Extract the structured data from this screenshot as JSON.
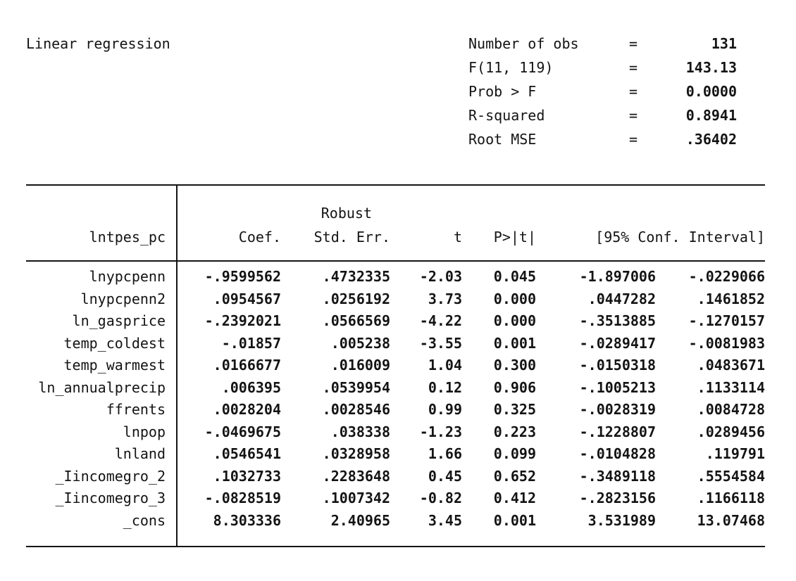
{
  "title": "Linear regression",
  "stats": {
    "rows": [
      {
        "label": "Number of obs",
        "eq": "=",
        "value": "131"
      },
      {
        "label": "F(11, 119)",
        "eq": "=",
        "value": "143.13"
      },
      {
        "label": "Prob > F",
        "eq": "=",
        "value": "0.0000"
      },
      {
        "label": "R-squared",
        "eq": "=",
        "value": "0.8941"
      },
      {
        "label": "Root MSE",
        "eq": "=",
        "value": ".36402"
      }
    ]
  },
  "table": {
    "depvar": "lntpes_pc",
    "robust_label": "Robust",
    "headers": {
      "coef": "Coef.",
      "stderr": "Std. Err.",
      "t": "t",
      "p": "P>|t|",
      "ci": "[95% Conf. Interval]"
    },
    "rows": [
      {
        "var": "lnypcpenn",
        "coef": "-.9599562",
        "se": ".4732335",
        "t": "-2.03",
        "p": "0.045",
        "ci_low": "-1.897006",
        "ci_high": "-.0229066"
      },
      {
        "var": "lnypcpenn2",
        "coef": ".0954567",
        "se": ".0256192",
        "t": "3.73",
        "p": "0.000",
        "ci_low": ".0447282",
        "ci_high": ".1461852"
      },
      {
        "var": "ln_gasprice",
        "coef": "-.2392021",
        "se": ".0566569",
        "t": "-4.22",
        "p": "0.000",
        "ci_low": "-.3513885",
        "ci_high": "-.1270157"
      },
      {
        "var": "temp_coldest",
        "coef": "-.01857",
        "se": ".005238",
        "t": "-3.55",
        "p": "0.001",
        "ci_low": "-.0289417",
        "ci_high": "-.0081983"
      },
      {
        "var": "temp_warmest",
        "coef": ".0166677",
        "se": ".016009",
        "t": "1.04",
        "p": "0.300",
        "ci_low": "-.0150318",
        "ci_high": ".0483671"
      },
      {
        "var": "ln_annualprecip",
        "coef": ".006395",
        "se": ".0539954",
        "t": "0.12",
        "p": "0.906",
        "ci_low": "-.1005213",
        "ci_high": ".1133114"
      },
      {
        "var": "ffrents",
        "coef": ".0028204",
        "se": ".0028546",
        "t": "0.99",
        "p": "0.325",
        "ci_low": "-.0028319",
        "ci_high": ".0084728"
      },
      {
        "var": "lnpop",
        "coef": "-.0469675",
        "se": ".038338",
        "t": "-1.23",
        "p": "0.223",
        "ci_low": "-.1228807",
        "ci_high": ".0289456"
      },
      {
        "var": "lnland",
        "coef": ".0546541",
        "se": ".0328958",
        "t": "1.66",
        "p": "0.099",
        "ci_low": "-.0104828",
        "ci_high": ".119791"
      },
      {
        "var": "_Iincomegro_2",
        "coef": ".1032733",
        "se": ".2283648",
        "t": "0.45",
        "p": "0.652",
        "ci_low": "-.3489118",
        "ci_high": ".5554584"
      },
      {
        "var": "_Iincomegro_3",
        "coef": "-.0828519",
        "se": ".1007342",
        "t": "-0.82",
        "p": "0.412",
        "ci_low": "-.2823156",
        "ci_high": ".1166118"
      },
      {
        "var": "_cons",
        "coef": "8.303336",
        "se": "2.40965",
        "t": "3.45",
        "p": "0.001",
        "ci_low": "3.531989",
        "ci_high": "13.07468"
      }
    ]
  }
}
